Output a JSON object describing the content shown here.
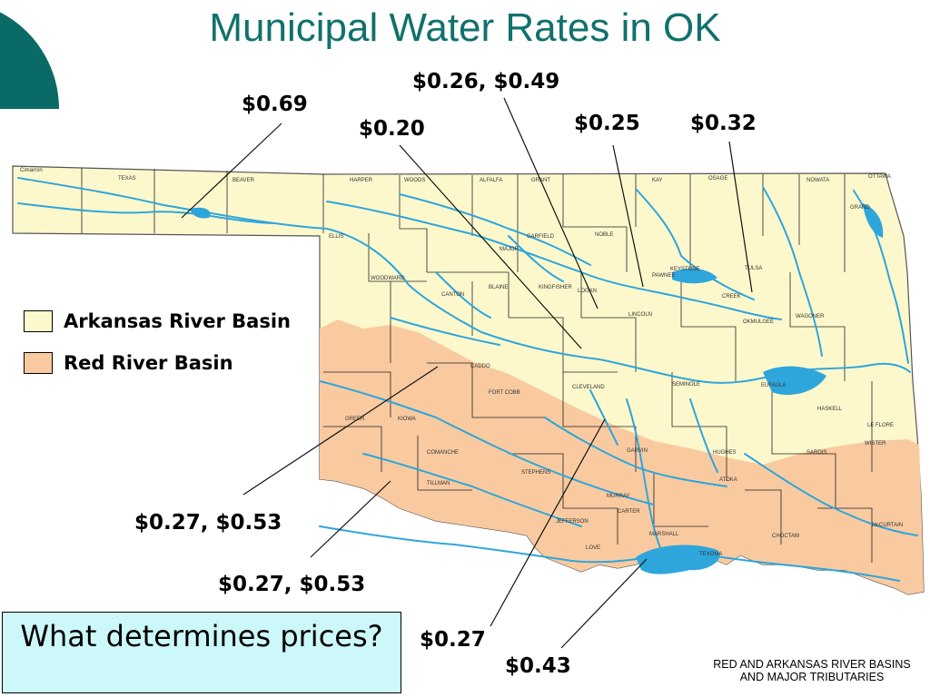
{
  "title": "Municipal Water Rates in OK",
  "rates": [
    {
      "id": "guymon",
      "text": "$0.69"
    },
    {
      "id": "enid",
      "text": "$0.26, $0.49"
    },
    {
      "id": "okc",
      "text": "$0.20"
    },
    {
      "id": "stillwater",
      "text": "$0.25"
    },
    {
      "id": "tulsa",
      "text": "$0.32"
    },
    {
      "id": "altus-1",
      "text": "$0.27, $0.53"
    },
    {
      "id": "altus-2",
      "text": "$0.27, $0.53"
    },
    {
      "id": "ardmore",
      "text": "$0.27"
    },
    {
      "id": "texoma",
      "text": "$0.43"
    }
  ],
  "legend": [
    {
      "label": "Arkansas River Basin",
      "color": "#fdf8cc"
    },
    {
      "label": "Red River Basin",
      "color": "#f9caa0"
    }
  ],
  "question": "What determines prices?",
  "caption_lines": [
    "RED AND ARKANSAS RIVER BASINS",
    "AND MAJOR TRIBUTARIES"
  ],
  "colors": {
    "title": "#11716c",
    "corner": "#0a6a66",
    "arkansas_basin": "#fdf8cc",
    "red_basin": "#f9caa0",
    "water": "#2ea6dc",
    "question_box": "#ccf8fa"
  },
  "map_labels": [
    "Cimarron",
    "TEXAS",
    "BEAVER",
    "HARPER",
    "WOODS",
    "ALFALFA",
    "GRANT",
    "KAY",
    "OSAGE",
    "NOWATA",
    "OTTAWA",
    "GRAND",
    "ELLIS",
    "MAJOR",
    "GARFIELD",
    "NOBLE",
    "PAWNEE",
    "TULSA",
    "WOODWARD",
    "CANTON",
    "BLAINE",
    "KINGFISHER",
    "LOGAN",
    "LINCOLN",
    "CREEK",
    "OKMULGEE",
    "WAGONER",
    "CADDO",
    "CLEVELAND",
    "SEMINOLE",
    "EUFAULA",
    "FORT COBB",
    "GREER",
    "KIOWA",
    "COMANCHE",
    "GARVIN",
    "HUGHES",
    "ATOKA",
    "MURRAY",
    "CARTER",
    "LOVE",
    "MARSHALL",
    "TEXOMA",
    "CHOCTAW",
    "McCURTAIN",
    "LE FLORE",
    "SARDIS",
    "WISTER",
    "KEYSTONE",
    "HASKELL",
    "JEFFERSON",
    "STEPHENS",
    "TILLMAN"
  ]
}
